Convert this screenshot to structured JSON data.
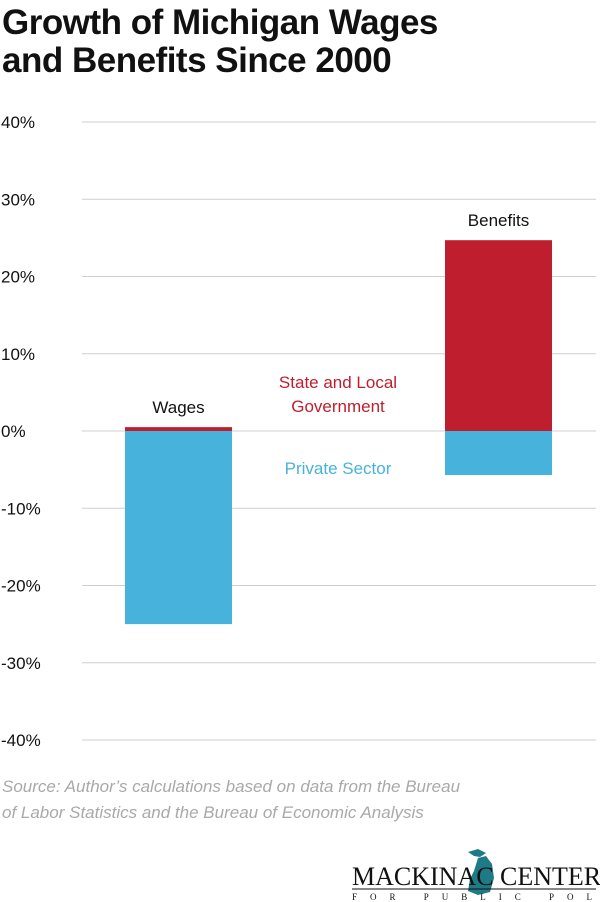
{
  "chart_data": {
    "type": "bar",
    "stacked": true,
    "title": "Growth of Michigan Wages and Benefits Since 2000",
    "categories": [
      "Wages",
      "Benefits"
    ],
    "series": [
      {
        "name": "State and Local Government",
        "values": [
          0.5,
          24.7
        ],
        "color": "#be1e2d"
      },
      {
        "name": "Private Sector",
        "values": [
          -25.0,
          -5.7
        ],
        "color": "#47b3dc"
      }
    ],
    "ylim": [
      -40,
      40
    ],
    "yticks": [
      40,
      30,
      20,
      10,
      0,
      -10,
      -20,
      -30,
      -40
    ],
    "ytick_labels": [
      "40%",
      "30%",
      "20%",
      "10%",
      "0%",
      "-10%",
      "-20%",
      "-30%",
      "-40%"
    ],
    "grid": true,
    "legend": "inline labels",
    "source": "Source: Author’s calculations based on data from the Bureau of Labor Statistics and the Bureau of Economic Analysis"
  },
  "title_lines": [
    "Growth of Michigan Wages",
    "and Benefits Since 2000"
  ],
  "series_labels": {
    "state_local": [
      "State and Local",
      "Government"
    ],
    "private": "Private Sector"
  },
  "source_lines": [
    "Source: Author’s calculations based on data from the Bureau",
    "of Labor Statistics and the Bureau of Economic Analysis"
  ],
  "logo": {
    "text": "MACKINAC CENTER",
    "subtext": "FOR PUBLIC POLICY",
    "color": "#1e7b85"
  }
}
